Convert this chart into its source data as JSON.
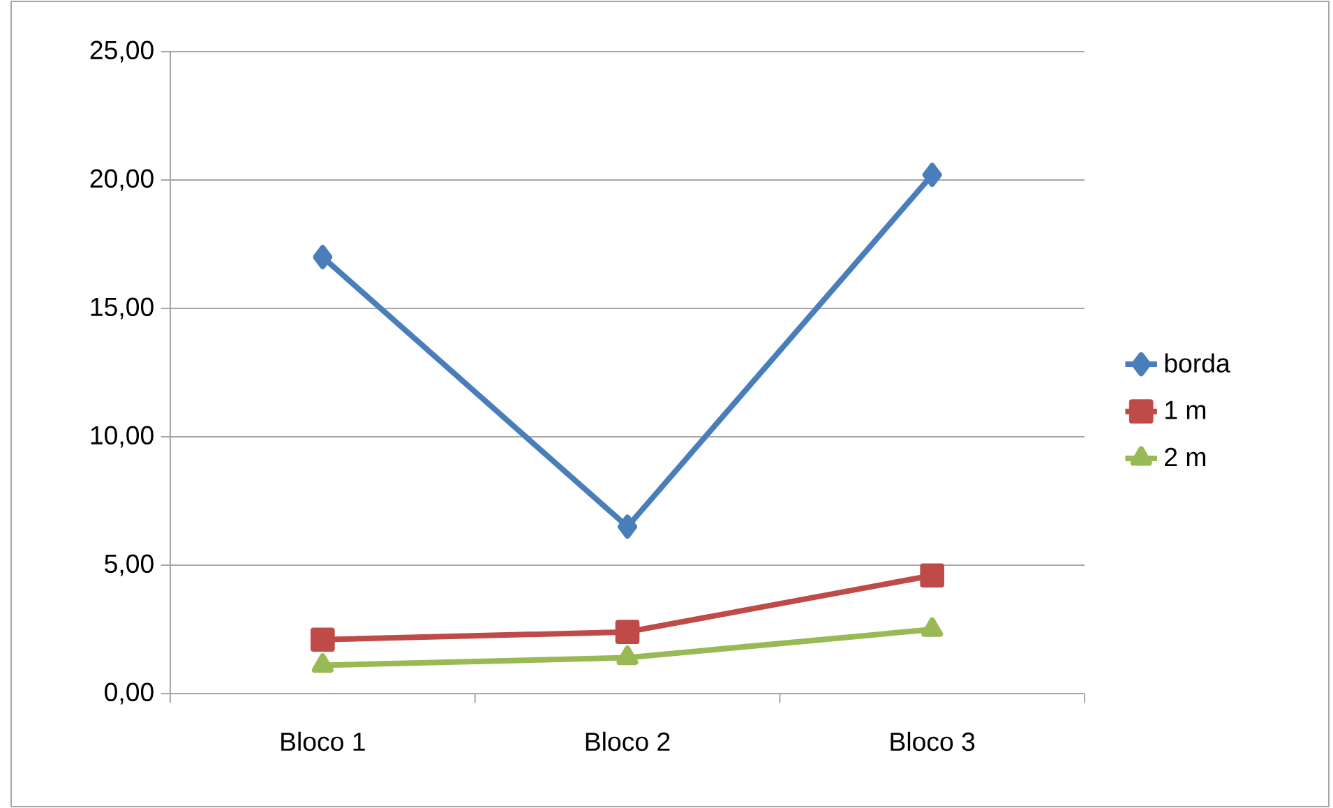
{
  "chart_data": {
    "type": "line",
    "categories": [
      "Bloco 1",
      "Bloco 2",
      "Bloco 3"
    ],
    "series": [
      {
        "name": "borda",
        "color": "#4a7ebb",
        "marker": "diamond",
        "values": [
          17.0,
          6.5,
          20.2
        ]
      },
      {
        "name": "1 m",
        "color": "#be4b48",
        "marker": "square",
        "values": [
          2.1,
          2.4,
          4.6
        ]
      },
      {
        "name": "2 m",
        "color": "#98b954",
        "marker": "triangle",
        "values": [
          1.1,
          1.4,
          2.5
        ]
      }
    ],
    "ylim": [
      0,
      25
    ],
    "yticks": [
      {
        "value": 0,
        "label": "0,00"
      },
      {
        "value": 5,
        "label": "5,00"
      },
      {
        "value": 10,
        "label": "10,00"
      },
      {
        "value": 15,
        "label": "15,00"
      },
      {
        "value": 20,
        "label": "20,00"
      },
      {
        "value": 25,
        "label": "25,00"
      }
    ],
    "grid": "y",
    "legend": "right",
    "line_style": "solid"
  }
}
